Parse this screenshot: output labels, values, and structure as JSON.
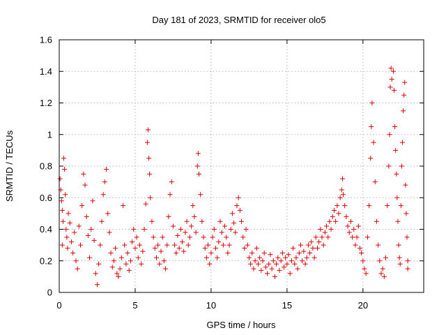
{
  "chart_data": {
    "type": "scatter",
    "title": "Day 181 of 2023, SRMTID for receiver olo5",
    "xlabel": "GPS time / hours",
    "ylabel": "SRMTID / TECUs",
    "xlim": [
      0,
      24
    ],
    "ylim": [
      0,
      1.6
    ],
    "xticks": [
      0,
      5,
      10,
      15,
      20
    ],
    "xtick_labels": [
      "0",
      "5",
      "10",
      "15",
      "20"
    ],
    "yticks": [
      0,
      0.2,
      0.4,
      0.6,
      0.8,
      1,
      1.2,
      1.4,
      1.6
    ],
    "ytick_labels": [
      "0",
      "0.2",
      "0.4",
      "0.6",
      "0.8",
      "1",
      "1.2",
      "1.4",
      "1.6"
    ],
    "grid": true,
    "marker": "+",
    "color": "#e00000",
    "series": [
      {
        "name": "SRMTID",
        "points": [
          [
            0.05,
            0.72
          ],
          [
            0.1,
            0.65
          ],
          [
            0.15,
            0.58
          ],
          [
            0.2,
            0.52
          ],
          [
            0.2,
            0.3
          ],
          [
            0.25,
            0.45
          ],
          [
            0.3,
            0.85
          ],
          [
            0.35,
            0.78
          ],
          [
            0.4,
            0.62
          ],
          [
            0.45,
            0.4
          ],
          [
            0.5,
            0.35
          ],
          [
            0.55,
            0.28
          ],
          [
            0.6,
            0.5
          ],
          [
            0.7,
            0.44
          ],
          [
            0.8,
            0.32
          ],
          [
            0.9,
            0.25
          ],
          [
            1.0,
            0.38
          ],
          [
            1.1,
            0.2
          ],
          [
            1.2,
            0.15
          ],
          [
            1.3,
            0.42
          ],
          [
            1.4,
            0.3
          ],
          [
            1.5,
            0.55
          ],
          [
            1.6,
            0.75
          ],
          [
            1.7,
            0.68
          ],
          [
            1.8,
            0.48
          ],
          [
            1.9,
            0.36
          ],
          [
            2.0,
            0.22
          ],
          [
            2.1,
            0.4
          ],
          [
            2.2,
            0.58
          ],
          [
            2.3,
            0.33
          ],
          [
            2.4,
            0.12
          ],
          [
            2.5,
            0.05
          ],
          [
            2.6,
            0.18
          ],
          [
            2.7,
            0.3
          ],
          [
            2.8,
            0.45
          ],
          [
            2.9,
            0.62
          ],
          [
            3.0,
            0.7
          ],
          [
            3.1,
            0.78
          ],
          [
            3.2,
            0.5
          ],
          [
            3.3,
            0.38
          ],
          [
            3.4,
            0.25
          ],
          [
            3.5,
            0.16
          ],
          [
            3.6,
            0.2
          ],
          [
            3.7,
            0.28
          ],
          [
            3.8,
            0.12
          ],
          [
            3.9,
            0.1
          ],
          [
            4.0,
            0.15
          ],
          [
            4.1,
            0.22
          ],
          [
            4.2,
            0.55
          ],
          [
            4.3,
            0.3
          ],
          [
            4.4,
            0.18
          ],
          [
            4.5,
            0.25
          ],
          [
            4.6,
            0.14
          ],
          [
            4.7,
            0.2
          ],
          [
            4.8,
            0.32
          ],
          [
            4.9,
            0.4
          ],
          [
            5.0,
            0.28
          ],
          [
            5.1,
            0.35
          ],
          [
            5.2,
            0.22
          ],
          [
            5.3,
            0.3
          ],
          [
            5.4,
            0.18
          ],
          [
            5.5,
            0.26
          ],
          [
            5.6,
            0.4
          ],
          [
            5.7,
            0.56
          ],
          [
            5.8,
            0.95
          ],
          [
            5.85,
            1.03
          ],
          [
            5.9,
            0.85
          ],
          [
            5.95,
            0.75
          ],
          [
            6.0,
            0.6
          ],
          [
            6.1,
            0.45
          ],
          [
            6.2,
            0.35
          ],
          [
            6.3,
            0.28
          ],
          [
            6.4,
            0.22
          ],
          [
            6.5,
            0.3
          ],
          [
            6.6,
            0.18
          ],
          [
            6.7,
            0.26
          ],
          [
            6.8,
            0.35
          ],
          [
            6.9,
            0.2
          ],
          [
            7.0,
            0.15
          ],
          [
            7.1,
            0.3
          ],
          [
            7.2,
            0.48
          ],
          [
            7.3,
            0.62
          ],
          [
            7.4,
            0.7
          ],
          [
            7.5,
            0.42
          ],
          [
            7.6,
            0.3
          ],
          [
            7.7,
            0.25
          ],
          [
            7.8,
            0.36
          ],
          [
            7.9,
            0.28
          ],
          [
            8.0,
            0.4
          ],
          [
            8.1,
            0.32
          ],
          [
            8.2,
            0.26
          ],
          [
            8.3,
            0.38
          ],
          [
            8.4,
            0.45
          ],
          [
            8.5,
            0.3
          ],
          [
            8.6,
            0.35
          ],
          [
            8.7,
            0.42
          ],
          [
            8.8,
            0.55
          ],
          [
            8.9,
            0.48
          ],
          [
            9.0,
            0.38
          ],
          [
            9.1,
            0.8
          ],
          [
            9.15,
            0.88
          ],
          [
            9.2,
            0.75
          ],
          [
            9.3,
            0.62
          ],
          [
            9.4,
            0.45
          ],
          [
            9.5,
            0.35
          ],
          [
            9.6,
            0.28
          ],
          [
            9.7,
            0.22
          ],
          [
            9.8,
            0.3
          ],
          [
            9.9,
            0.18
          ],
          [
            10.0,
            0.25
          ],
          [
            10.1,
            0.35
          ],
          [
            10.2,
            0.4
          ],
          [
            10.3,
            0.28
          ],
          [
            10.4,
            0.22
          ],
          [
            10.5,
            0.32
          ],
          [
            10.6,
            0.45
          ],
          [
            10.7,
            0.38
          ],
          [
            10.8,
            0.3
          ],
          [
            10.9,
            0.42
          ],
          [
            11.0,
            0.35
          ],
          [
            11.1,
            0.25
          ],
          [
            11.2,
            0.3
          ],
          [
            11.3,
            0.4
          ],
          [
            11.4,
            0.5
          ],
          [
            11.5,
            0.44
          ],
          [
            11.6,
            0.38
          ],
          [
            11.7,
            0.55
          ],
          [
            11.8,
            0.6
          ],
          [
            11.9,
            0.52
          ],
          [
            12.0,
            0.45
          ],
          [
            12.1,
            0.35
          ],
          [
            12.2,
            0.28
          ],
          [
            12.3,
            0.4
          ],
          [
            12.4,
            0.3
          ],
          [
            12.5,
            0.22
          ],
          [
            12.6,
            0.18
          ],
          [
            12.7,
            0.25
          ],
          [
            12.8,
            0.15
          ],
          [
            12.9,
            0.2
          ],
          [
            13.0,
            0.28
          ],
          [
            13.1,
            0.18
          ],
          [
            13.2,
            0.22
          ],
          [
            13.3,
            0.14
          ],
          [
            13.4,
            0.2
          ],
          [
            13.5,
            0.25
          ],
          [
            13.6,
            0.16
          ],
          [
            13.7,
            0.12
          ],
          [
            13.8,
            0.18
          ],
          [
            13.9,
            0.24
          ],
          [
            14.0,
            0.15
          ],
          [
            14.1,
            0.2
          ],
          [
            14.2,
            0.1
          ],
          [
            14.3,
            0.18
          ],
          [
            14.4,
            0.22
          ],
          [
            14.5,
            0.14
          ],
          [
            14.6,
            0.2
          ],
          [
            14.7,
            0.25
          ],
          [
            14.8,
            0.16
          ],
          [
            14.9,
            0.22
          ],
          [
            15.0,
            0.18
          ],
          [
            15.1,
            0.24
          ],
          [
            15.2,
            0.12
          ],
          [
            15.3,
            0.2
          ],
          [
            15.4,
            0.28
          ],
          [
            15.5,
            0.18
          ],
          [
            15.6,
            0.22
          ],
          [
            15.7,
            0.15
          ],
          [
            15.8,
            0.25
          ],
          [
            15.9,
            0.3
          ],
          [
            16.0,
            0.2
          ],
          [
            16.1,
            0.26
          ],
          [
            16.2,
            0.18
          ],
          [
            16.3,
            0.22
          ],
          [
            16.4,
            0.3
          ],
          [
            16.5,
            0.25
          ],
          [
            16.6,
            0.32
          ],
          [
            16.7,
            0.28
          ],
          [
            16.8,
            0.22
          ],
          [
            16.9,
            0.35
          ],
          [
            17.0,
            0.28
          ],
          [
            17.1,
            0.32
          ],
          [
            17.2,
            0.4
          ],
          [
            17.3,
            0.35
          ],
          [
            17.4,
            0.3
          ],
          [
            17.5,
            0.38
          ],
          [
            17.6,
            0.42
          ],
          [
            17.7,
            0.35
          ],
          [
            17.8,
            0.45
          ],
          [
            17.9,
            0.4
          ],
          [
            18.0,
            0.48
          ],
          [
            18.1,
            0.52
          ],
          [
            18.2,
            0.45
          ],
          [
            18.3,
            0.55
          ],
          [
            18.4,
            0.5
          ],
          [
            18.5,
            0.6
          ],
          [
            18.6,
            0.65
          ],
          [
            18.65,
            0.72
          ],
          [
            18.7,
            0.62
          ],
          [
            18.8,
            0.55
          ],
          [
            18.9,
            0.48
          ],
          [
            19.0,
            0.42
          ],
          [
            19.1,
            0.38
          ],
          [
            19.2,
            0.45
          ],
          [
            19.3,
            0.35
          ],
          [
            19.4,
            0.4
          ],
          [
            19.5,
            0.3
          ],
          [
            19.6,
            0.35
          ],
          [
            19.7,
            0.42
          ],
          [
            19.8,
            0.28
          ],
          [
            19.9,
            0.25
          ],
          [
            20.0,
            0.2
          ],
          [
            20.1,
            0.15
          ],
          [
            20.2,
            0.12
          ],
          [
            20.3,
            0.35
          ],
          [
            20.4,
            0.55
          ],
          [
            20.5,
            0.85
          ],
          [
            20.55,
            1.05
          ],
          [
            20.6,
            1.2
          ],
          [
            20.7,
            0.95
          ],
          [
            20.8,
            0.7
          ],
          [
            20.9,
            0.45
          ],
          [
            21.0,
            0.3
          ],
          [
            21.1,
            0.2
          ],
          [
            21.2,
            0.12
          ],
          [
            21.3,
            0.15
          ],
          [
            21.4,
            0.1
          ],
          [
            21.5,
            0.22
          ],
          [
            21.6,
            0.55
          ],
          [
            21.7,
            0.8
          ],
          [
            21.75,
            1.0
          ],
          [
            21.8,
            1.3
          ],
          [
            21.85,
            1.42
          ],
          [
            21.9,
            1.35
          ],
          [
            22.0,
            1.4
          ],
          [
            22.05,
            1.28
          ],
          [
            22.1,
            1.05
          ],
          [
            22.15,
            0.9
          ],
          [
            22.2,
            0.75
          ],
          [
            22.25,
            0.6
          ],
          [
            22.3,
            0.45
          ],
          [
            22.35,
            0.3
          ],
          [
            22.4,
            0.22
          ],
          [
            22.45,
            0.18
          ],
          [
            22.5,
            0.55
          ],
          [
            22.55,
            0.8
          ],
          [
            22.6,
            0.95
          ],
          [
            22.65,
            1.15
          ],
          [
            22.7,
            1.25
          ],
          [
            22.75,
            1.33
          ],
          [
            22.8,
            0.68
          ],
          [
            22.85,
            0.5
          ],
          [
            22.9,
            0.35
          ],
          [
            22.95,
            0.2
          ],
          [
            22.95,
            0.15
          ]
        ]
      }
    ]
  }
}
